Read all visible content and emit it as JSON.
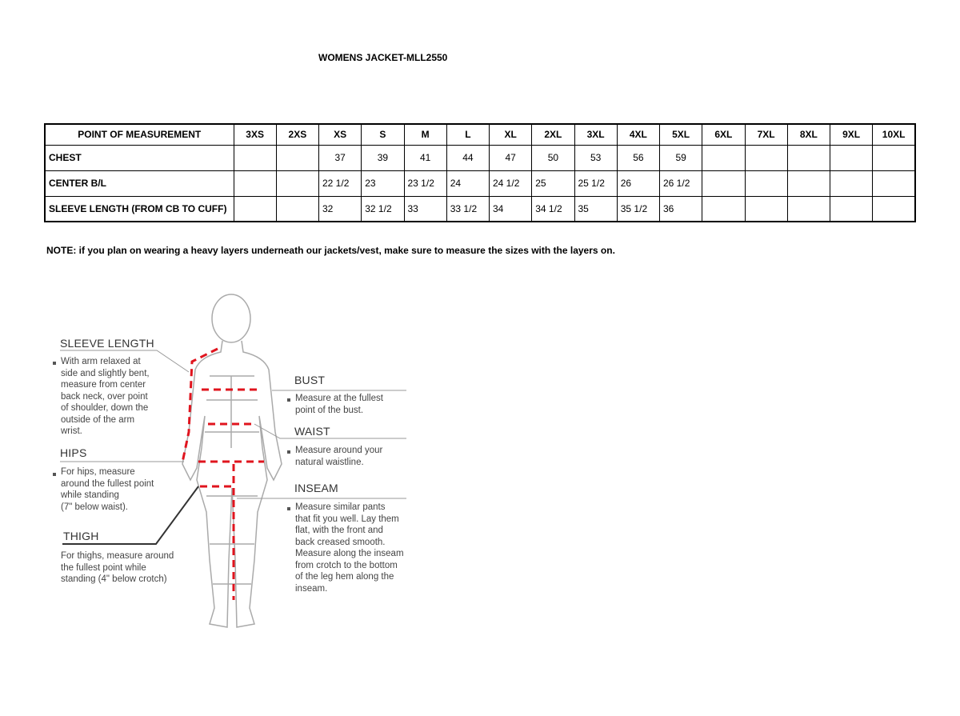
{
  "title": "WOMENS JACKET-MLL2550",
  "table": {
    "headers": [
      "POINT OF MEASUREMENT",
      "3XS",
      "2XS",
      "XS",
      "S",
      "M",
      "L",
      "XL",
      "2XL",
      "3XL",
      "4XL",
      "5XL",
      "6XL",
      "7XL",
      "8XL",
      "9XL",
      "10XL"
    ],
    "rows": [
      {
        "label": "CHEST",
        "values": [
          "",
          "",
          "37",
          "39",
          "41",
          "44",
          "47",
          "50",
          "53",
          "56",
          "59",
          "",
          "",
          "",
          "",
          ""
        ]
      },
      {
        "label": "CENTER B/L",
        "values": [
          "",
          "",
          "22 1/2",
          "23",
          "23 1/2",
          "24",
          "24 1/2",
          "25",
          "25 1/2",
          "26",
          "26 1/2",
          "",
          "",
          "",
          "",
          ""
        ]
      },
      {
        "label": "SLEEVE LENGTH (FROM CB TO CUFF)",
        "values": [
          "",
          "",
          "32",
          "32 1/2",
          "33",
          "33 1/2",
          "34",
          "34 1/2",
          "35",
          "35 1/2",
          "36",
          "",
          "",
          "",
          "",
          ""
        ]
      }
    ]
  },
  "note": "NOTE: if you plan on wearing a heavy layers underneath our jackets/vest, make sure to measure the sizes with the layers on.",
  "diagram": {
    "sleeve": {
      "label": "SLEEVE LENGTH",
      "lines": [
        "With arm relaxed at",
        "side and slightly bent,",
        "measure from center",
        "back neck, over point",
        "of shoulder, down the",
        "outside of the arm",
        "wrist."
      ]
    },
    "hips": {
      "label": "HIPS",
      "lines": [
        "For hips, measure",
        "around the fullest point",
        "while standing",
        "(7\" below waist)."
      ]
    },
    "thigh": {
      "label": "THIGH",
      "lines": [
        "For thighs, measure around",
        "the fullest point while",
        "standing (4\" below crotch)"
      ]
    },
    "bust": {
      "label": "BUST",
      "lines": [
        "Measure at the fullest",
        "point of the bust."
      ]
    },
    "waist": {
      "label": "WAIST",
      "lines": [
        "Measure around your",
        "natural waistline."
      ]
    },
    "inseam": {
      "label": "INSEAM",
      "lines": [
        "Measure similar pants",
        "that fit you well. Lay them",
        "flat, with the front and",
        "back creased smooth.",
        "Measure along the inseam",
        "from crotch to the bottom",
        "of the leg hem along the",
        "inseam."
      ]
    },
    "dash_color": "#e0141e"
  }
}
